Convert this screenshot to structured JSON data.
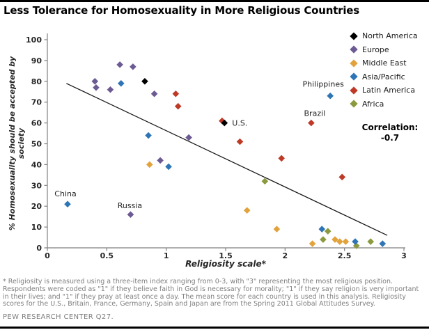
{
  "header": {
    "title": "Less Tolerance for Homosexuality in More Religious Countries"
  },
  "chart_data": {
    "type": "scatter",
    "title": "Less Tolerance for Homosexuality in More Religious Countries",
    "xlabel": "Religiosity scale*",
    "ylabel": "% Homosexuality should be accepted by society",
    "xlim": [
      0,
      3
    ],
    "ylim": [
      0,
      100
    ],
    "xticks": [
      0,
      0.5,
      1,
      1.5,
      2,
      2.5,
      3
    ],
    "yticks": [
      0,
      10,
      20,
      30,
      40,
      50,
      60,
      70,
      80,
      90,
      100
    ],
    "grid": false,
    "legend_position": "top-right",
    "correlation_note": {
      "label": "Correlation:",
      "value": "-0.7"
    },
    "trendline": {
      "x1": 0.16,
      "y1": 79,
      "x2": 2.86,
      "y2": 6
    },
    "series": [
      {
        "name": "North America",
        "color": "#000000",
        "points": [
          {
            "x": 0.82,
            "y": 80
          },
          {
            "x": 1.49,
            "y": 60,
            "label": "U.S.",
            "anchor": "start",
            "dx": 11,
            "dy": 4
          }
        ]
      },
      {
        "name": "Europe",
        "color": "#6C5A93",
        "points": [
          {
            "x": 0.4,
            "y": 80
          },
          {
            "x": 0.41,
            "y": 77
          },
          {
            "x": 0.53,
            "y": 76
          },
          {
            "x": 0.61,
            "y": 88
          },
          {
            "x": 0.72,
            "y": 87
          },
          {
            "x": 0.9,
            "y": 74
          },
          {
            "x": 0.95,
            "y": 42
          },
          {
            "x": 1.19,
            "y": 53
          },
          {
            "x": 0.7,
            "y": 16,
            "label": "Russia",
            "anchor": "middle",
            "dx": -1,
            "dy": -9
          }
        ]
      },
      {
        "name": "Middle East",
        "color": "#E2A33D",
        "points": [
          {
            "x": 0.86,
            "y": 40
          },
          {
            "x": 1.68,
            "y": 18
          },
          {
            "x": 1.93,
            "y": 9
          },
          {
            "x": 2.23,
            "y": 2
          },
          {
            "x": 2.42,
            "y": 4
          },
          {
            "x": 2.46,
            "y": 3
          },
          {
            "x": 2.51,
            "y": 3
          }
        ]
      },
      {
        "name": "Asia/Pacific",
        "color": "#2E75B6",
        "points": [
          {
            "x": 0.17,
            "y": 21,
            "label": "China",
            "anchor": "middle",
            "dx": -3,
            "dy": -11
          },
          {
            "x": 0.62,
            "y": 79
          },
          {
            "x": 0.85,
            "y": 54
          },
          {
            "x": 1.02,
            "y": 39
          },
          {
            "x": 2.31,
            "y": 9
          },
          {
            "x": 2.38,
            "y": 73,
            "label": "Philippines",
            "anchor": "middle",
            "dx": -10,
            "dy": -13
          },
          {
            "x": 2.59,
            "y": 3
          },
          {
            "x": 2.82,
            "y": 2
          }
        ]
      },
      {
        "name": "Latin America",
        "color": "#BE3A26",
        "points": [
          {
            "x": 1.08,
            "y": 74
          },
          {
            "x": 1.1,
            "y": 68
          },
          {
            "x": 1.47,
            "y": 61
          },
          {
            "x": 1.62,
            "y": 51
          },
          {
            "x": 1.97,
            "y": 43
          },
          {
            "x": 2.22,
            "y": 60,
            "label": "Brazil",
            "anchor": "middle",
            "dx": 5,
            "dy": -10
          },
          {
            "x": 2.48,
            "y": 34
          }
        ]
      },
      {
        "name": "Africa",
        "color": "#8B9A3E",
        "points": [
          {
            "x": 1.83,
            "y": 32
          },
          {
            "x": 2.32,
            "y": 4
          },
          {
            "x": 2.36,
            "y": 8
          },
          {
            "x": 2.6,
            "y": 1
          },
          {
            "x": 2.72,
            "y": 3
          }
        ]
      }
    ]
  },
  "footnote": {
    "text": "* Religiosity is measured using a three-item index ranging from 0-3, with \"3\" representing the most religious position. Respondents were coded as \"1\" if they believe faith in God is necessary for morality; \"1\" if they say religion is very important in their lives; and \"1\" if they pray at least once a day. The mean score for each country is used in this analysis. Religiosity scores for the U.S., Britain, France, Germany, Spain and Japan are from the Spring 2011 Global Attitudes Survey.",
    "source": "PEW RESEARCH CENTER Q27."
  }
}
